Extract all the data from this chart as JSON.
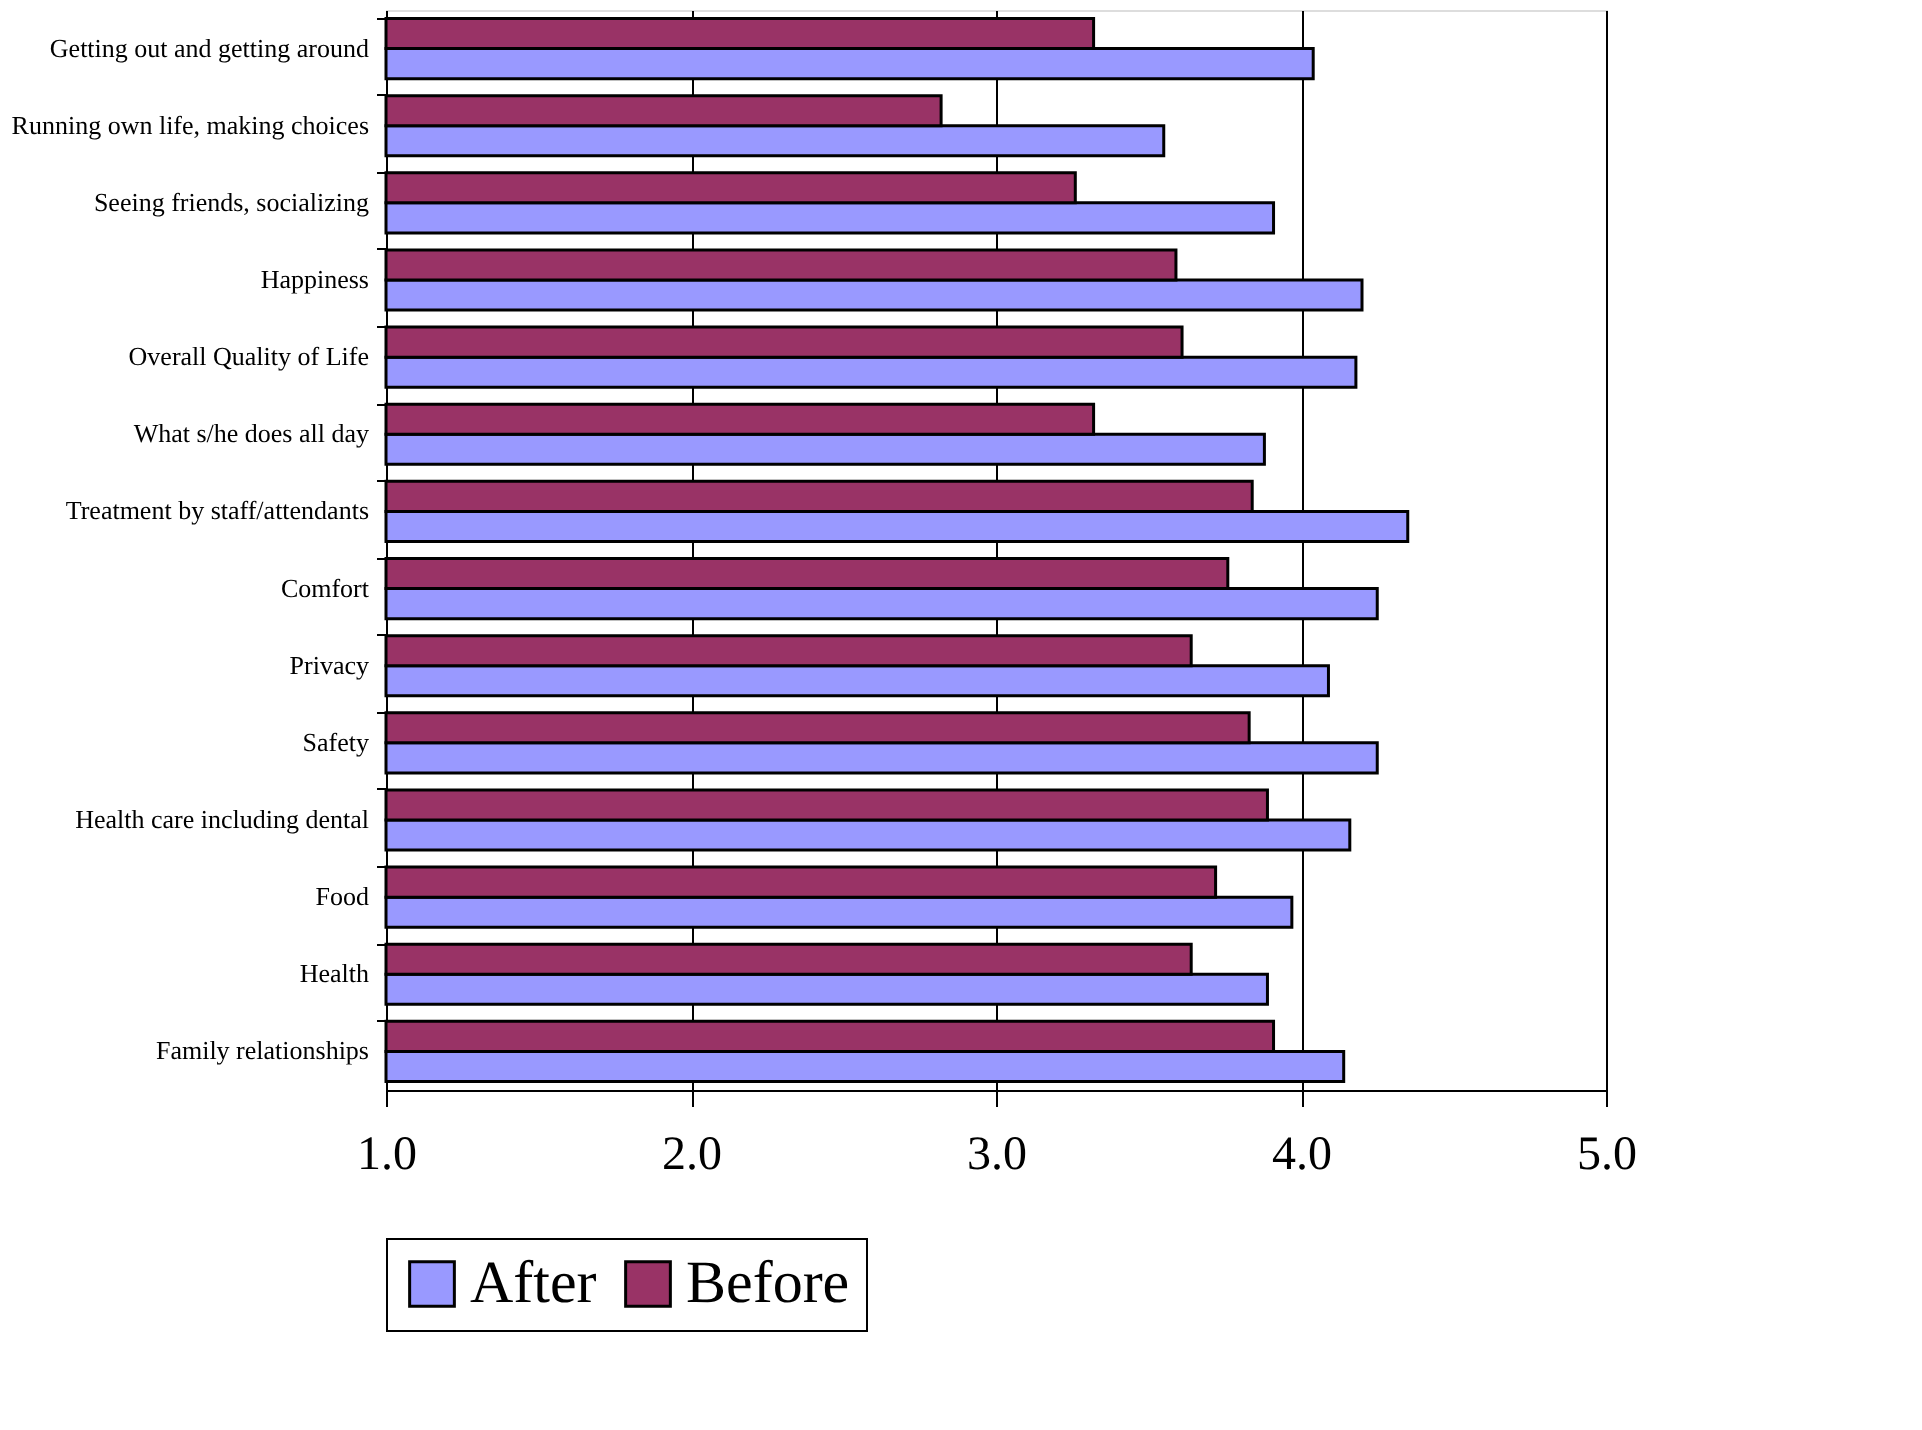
{
  "chart_data": {
    "type": "bar",
    "orientation": "horizontal",
    "categories": [
      "Getting out and getting around",
      "Running own life, making choices",
      "Seeing friends, socializing",
      "Happiness",
      "Overall Quality of Life",
      "What s/he does all day",
      "Treatment by staff/attendants",
      "Comfort",
      "Privacy",
      "Safety",
      "Health care including dental",
      "Food",
      "Health",
      "Family relationships"
    ],
    "series": [
      {
        "name": "After",
        "color": "#9999ff",
        "values": [
          4.04,
          3.55,
          3.91,
          4.2,
          4.18,
          3.88,
          4.35,
          4.25,
          4.09,
          4.25,
          4.16,
          3.97,
          3.89,
          4.14
        ]
      },
      {
        "name": "Before",
        "color": "#993366",
        "values": [
          3.32,
          2.82,
          3.26,
          3.59,
          3.61,
          3.32,
          3.84,
          3.76,
          3.64,
          3.83,
          3.89,
          3.72,
          3.64,
          3.91
        ]
      }
    ],
    "xlim": [
      1.0,
      5.0
    ],
    "xticks": [
      {
        "value": 1,
        "label": "1.0"
      },
      {
        "value": 2,
        "label": "2.0"
      },
      {
        "value": 3,
        "label": "3.0"
      },
      {
        "value": 4,
        "label": "4.0"
      },
      {
        "value": 5,
        "label": "5.0"
      }
    ],
    "grid": "x",
    "legend": "bottom"
  }
}
